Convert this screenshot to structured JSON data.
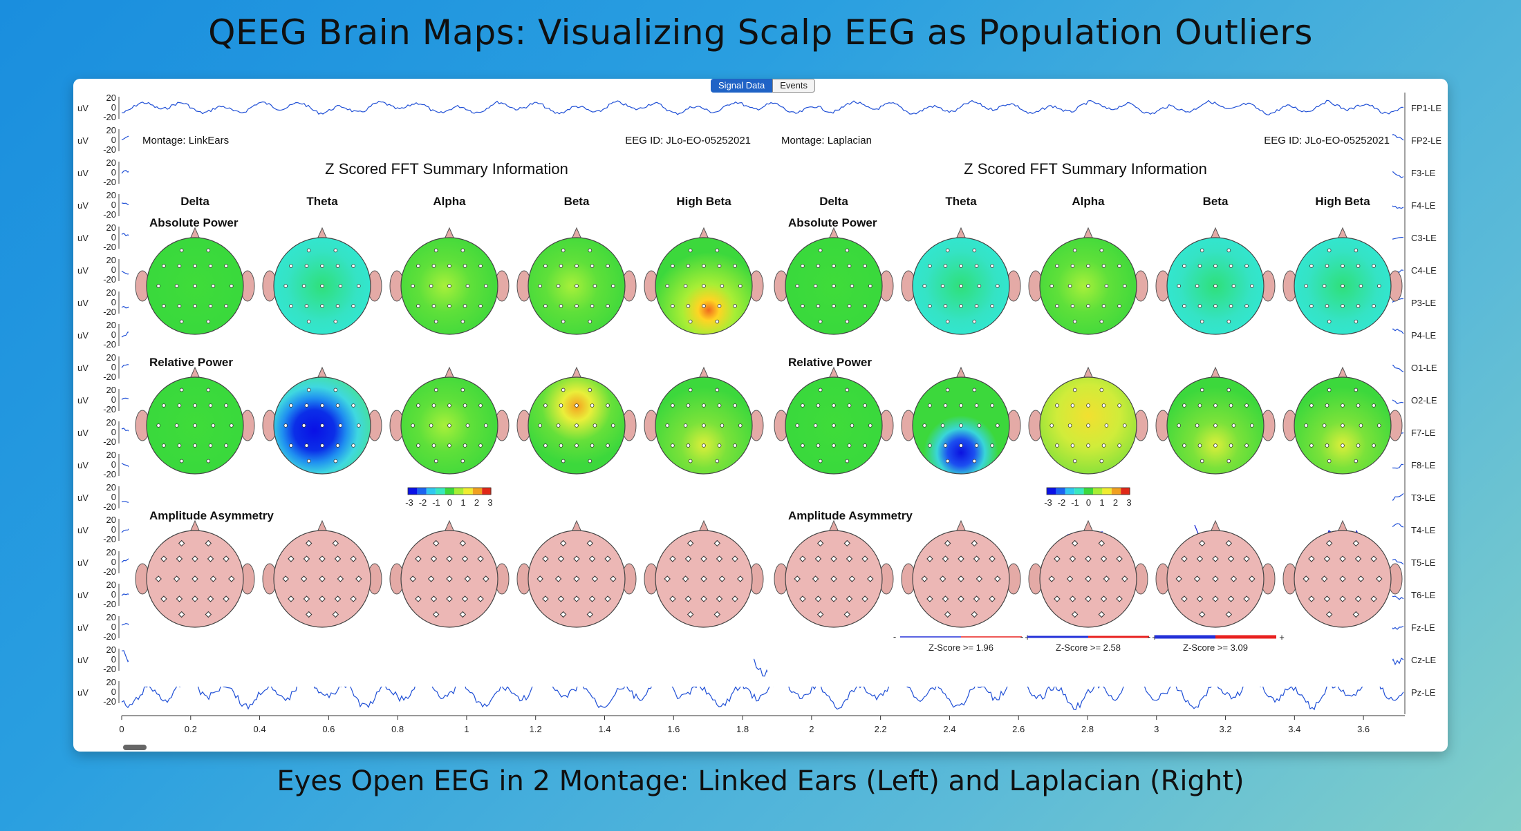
{
  "title": "QEEG Brain Maps: Visualizing Scalp EEG as Population Outliers",
  "caption": "Eyes Open EEG in 2 Montage: Linked Ears (Left) and Laplacian (Right)",
  "tabs": [
    {
      "label": "Signal Data",
      "active": true
    },
    {
      "label": "Events",
      "active": false
    }
  ],
  "channel_unit": "uV",
  "channels": [
    "FP1-LE",
    "FP2-LE",
    "F3-LE",
    "F4-LE",
    "C3-LE",
    "C4-LE",
    "P3-LE",
    "P4-LE",
    "O1-LE",
    "O2-LE",
    "F7-LE",
    "F8-LE",
    "T3-LE",
    "T4-LE",
    "T5-LE",
    "T6-LE",
    "Fz-LE",
    "Cz-LE",
    "Pz-LE"
  ],
  "tick_labels": [
    "20",
    "0",
    "-20"
  ],
  "time_axis": [
    "0",
    "0.2",
    "0.4",
    "0.6",
    "0.8",
    "1",
    "1.2",
    "1.4",
    "1.6",
    "1.8",
    "2",
    "2.2",
    "2.4",
    "2.6",
    "2.8",
    "3",
    "3.2",
    "3.4",
    "3.6"
  ],
  "panels": [
    {
      "montage_label": "Montage:  LinkEars",
      "eeg_id": "EEG ID:  JLo-EO-05252021",
      "heading": "Z Scored FFT Summary Information",
      "bands": [
        "Delta",
        "Theta",
        "Alpha",
        "Beta",
        "High Beta"
      ],
      "rows": [
        "Absolute Power",
        "Relative Power",
        "Amplitude Asymmetry"
      ],
      "colorbar_ticks": [
        "-3",
        "-2",
        "-1",
        "0",
        "1",
        "2",
        "3"
      ],
      "zscore_legends": []
    },
    {
      "montage_label": "Montage:  Laplacian",
      "eeg_id": "EEG ID:  JLo-EO-05252021",
      "heading": "Z Scored FFT Summary Information",
      "bands": [
        "Delta",
        "Theta",
        "Alpha",
        "Beta",
        "High Beta"
      ],
      "rows": [
        "Absolute Power",
        "Relative Power",
        "Amplitude Asymmetry"
      ],
      "colorbar_ticks": [
        "-3",
        "-2",
        "-1",
        "0",
        "1",
        "2",
        "3"
      ],
      "zscore_legends": [
        {
          "minus": "-",
          "label": "Z-Score >= 1.96",
          "plus": "+"
        },
        {
          "minus": "-",
          "label": "Z-Score >= 2.58",
          "plus": "+"
        },
        {
          "minus": "-",
          "label": "Z-Score >= 3.09",
          "plus": "+"
        }
      ]
    }
  ],
  "colors": {
    "signal": "#1f4fd6",
    "head_green": "#3bdc3b",
    "head_pink": "#ecb7b5",
    "ear": "#e4aaa6",
    "asym_red": "#e8201f",
    "asym_blue": "#2330d8"
  }
}
